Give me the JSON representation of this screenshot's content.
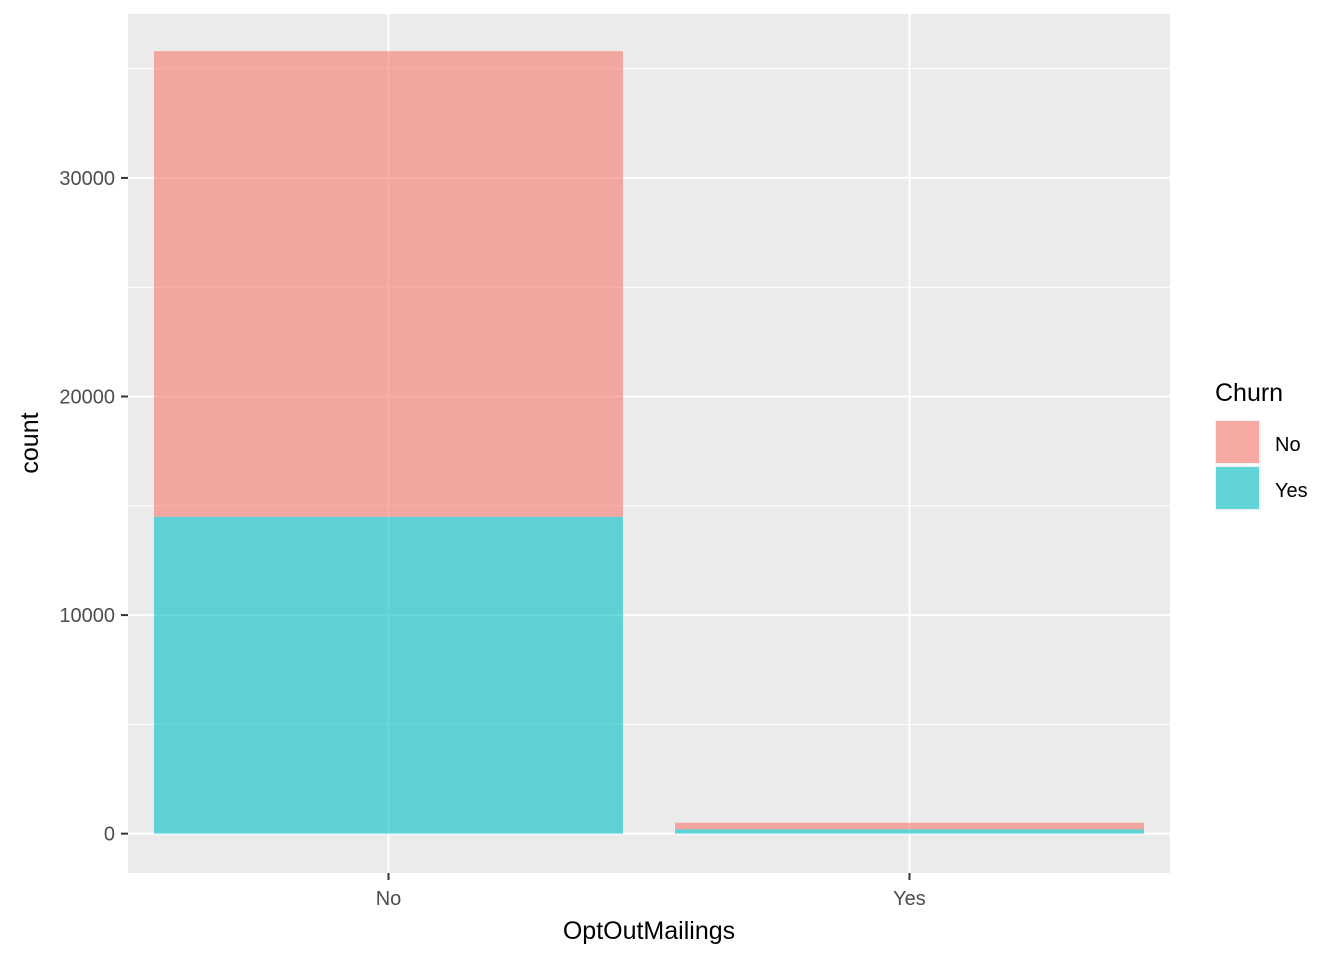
{
  "chart_data": {
    "type": "bar",
    "stacked": true,
    "xlabel": "OptOutMailings",
    "ylabel": "count",
    "categories": [
      "No",
      "Yes"
    ],
    "series": [
      {
        "name": "No",
        "color": "#F8766D",
        "values": [
          21300,
          300
        ]
      },
      {
        "name": "Yes",
        "color": "#00BFC4",
        "values": [
          14500,
          200
        ]
      }
    ],
    "ylim": [
      -1800,
      37500
    ],
    "yticks": [
      0,
      10000,
      20000,
      30000
    ],
    "ytick_labels": [
      "0",
      "10000",
      "20000",
      "30000"
    ],
    "grid": true,
    "legend": {
      "title": "Churn",
      "position": "right",
      "entries": [
        "No",
        "Yes"
      ]
    }
  }
}
